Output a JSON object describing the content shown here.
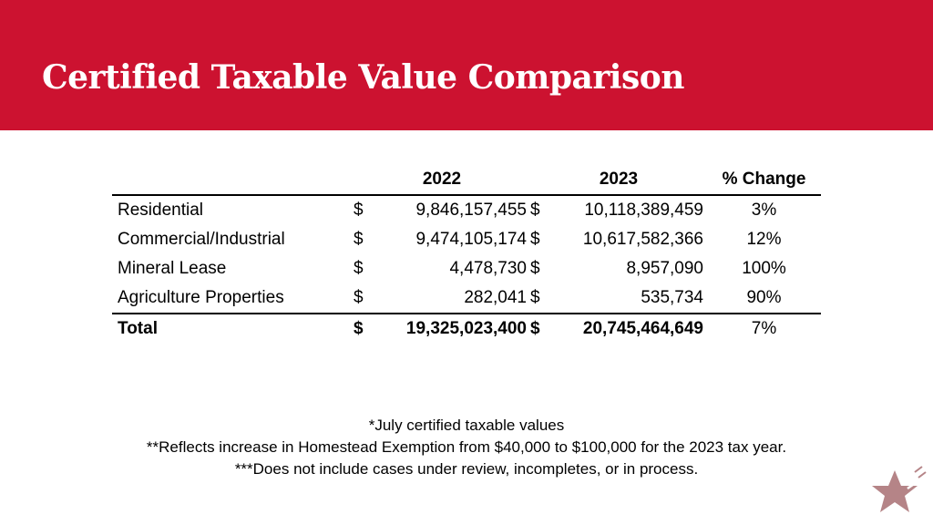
{
  "title": "Certified Taxable Value Comparison",
  "table": {
    "headers": [
      "",
      "2022",
      "2023",
      "% Change"
    ],
    "rows": [
      {
        "label": "Residential",
        "cur1": "$",
        "v2022": "9,846,157,455",
        "cur2": "$",
        "v2023": "10,118,389,459",
        "change": "3%"
      },
      {
        "label": "Commercial/Industrial",
        "cur1": "$",
        "v2022": "9,474,105,174",
        "cur2": "$",
        "v2023": "10,617,582,366",
        "change": "12%"
      },
      {
        "label": "Mineral Lease",
        "cur1": "$",
        "v2022": "4,478,730",
        "cur2": "$",
        "v2023": "8,957,090",
        "change": "100%"
      },
      {
        "label": "Agriculture Properties",
        "cur1": "$",
        "v2022": "282,041",
        "cur2": "$",
        "v2023": "535,734",
        "change": "90%"
      }
    ],
    "total": {
      "label": "Total",
      "cur1": "$",
      "v2022": "19,325,023,400",
      "cur2": "$",
      "v2023": "20,745,464,649",
      "change": "7%"
    }
  },
  "notes": [
    "*July certified taxable values",
    "**Reflects increase in Homestead Exemption from $40,000 to $100,000 for the 2023 tax year.",
    "***Does not include cases under review, incompletes, or in process."
  ],
  "colors": {
    "header_bg": "#cc1230",
    "title_text": "#ffffff",
    "star": "#b58487"
  },
  "icons": {
    "logo": "star-icon"
  }
}
